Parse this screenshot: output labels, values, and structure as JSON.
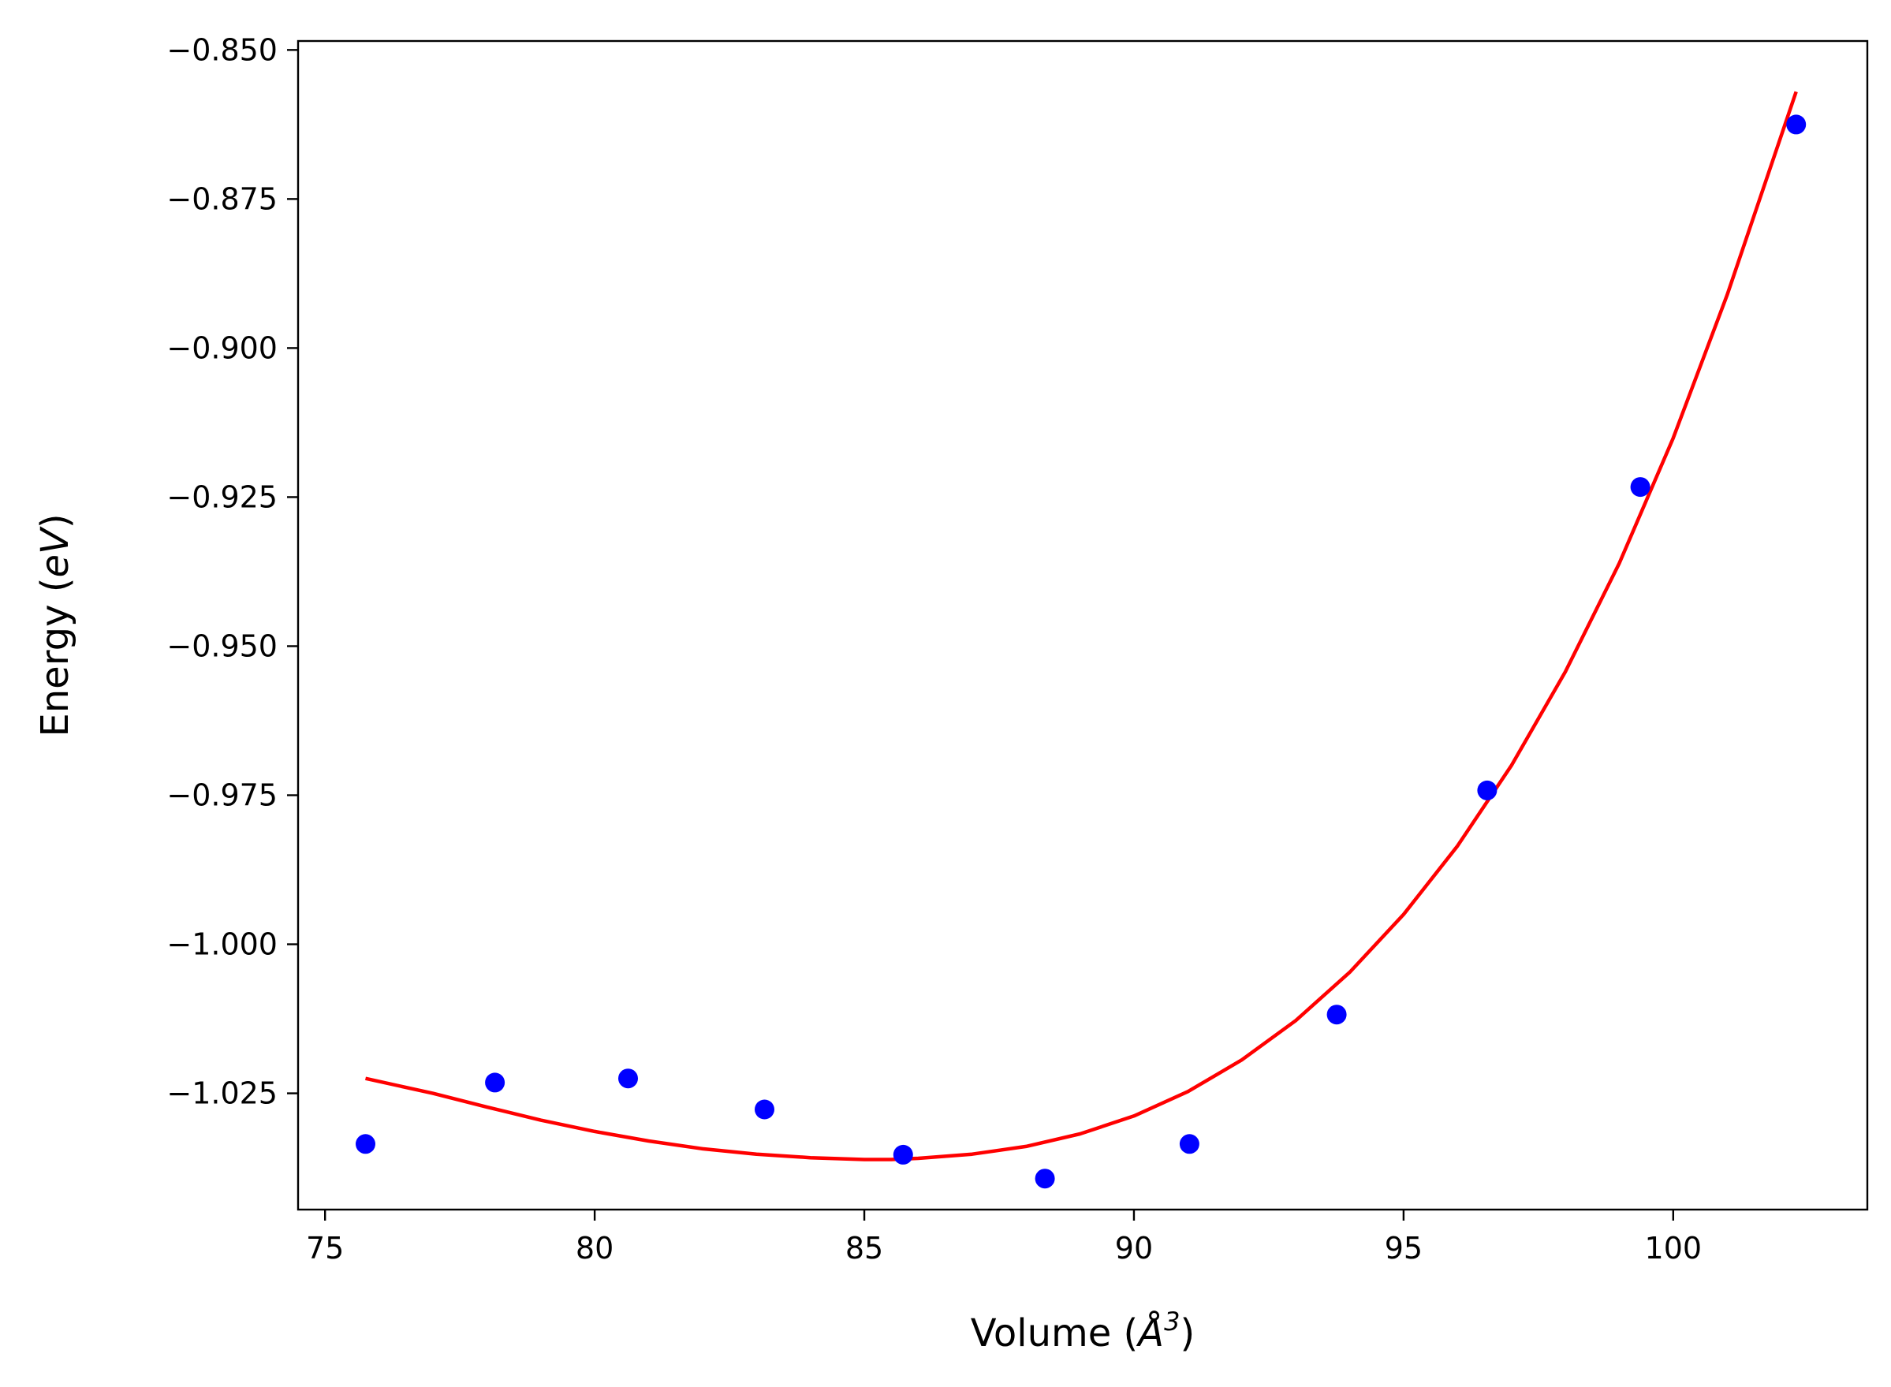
{
  "chart_data": {
    "type": "scatter",
    "xlabel": "Volume (Å³)",
    "ylabel": "Energy (eV)",
    "xlabel_parts": {
      "prefix": "Volume (",
      "symbol": "Å",
      "sup": "3",
      "suffix": ")"
    },
    "ylabel_parts": {
      "prefix": "Energy (",
      "unit": "eV",
      "suffix": ")"
    },
    "xlim": [
      74.5,
      103.6
    ],
    "ylim": [
      -1.0445,
      -0.8485
    ],
    "x_ticks": [
      75,
      80,
      85,
      90,
      95,
      100
    ],
    "x_tick_labels": [
      "75",
      "80",
      "85",
      "90",
      "95",
      "100"
    ],
    "y_ticks": [
      -0.85,
      -0.875,
      -0.9,
      -0.925,
      -0.95,
      -0.975,
      -1.0,
      -1.025
    ],
    "y_tick_labels": [
      "−0.850",
      "−0.875",
      "−0.900",
      "−0.925",
      "−0.950",
      "−0.975",
      "−1.000",
      "−1.025"
    ],
    "grid": false,
    "series": [
      {
        "kind": "scatter",
        "color": "#0000ff",
        "x": [
          75.75,
          78.15,
          80.62,
          83.15,
          85.72,
          88.35,
          91.03,
          93.76,
          96.55,
          99.39,
          102.28
        ],
        "y": [
          -1.0335,
          -1.0232,
          -1.0225,
          -1.0277,
          -1.0353,
          -1.0393,
          -1.0335,
          -1.0118,
          -0.9742,
          -0.9233,
          -0.8625
        ]
      },
      {
        "kind": "fit-line",
        "color": "#ff0000",
        "x": [
          75.75,
          77.0,
          78.0,
          79.0,
          80.0,
          81.0,
          82.0,
          83.0,
          84.0,
          85.0,
          85.5,
          86.0,
          87.0,
          88.0,
          89.0,
          90.0,
          91.0,
          92.0,
          93.0,
          94.0,
          95.0,
          96.0,
          97.0,
          98.0,
          99.0,
          100.0,
          101.0,
          102.28
        ],
        "y": [
          -1.0225,
          -1.025,
          -1.0273,
          -1.0295,
          -1.0314,
          -1.033,
          -1.0343,
          -1.0352,
          -1.0358,
          -1.0361,
          -1.0361,
          -1.0359,
          -1.0352,
          -1.0339,
          -1.0318,
          -1.0288,
          -1.0247,
          -1.0194,
          -1.0128,
          -1.0047,
          -0.995,
          -0.9835,
          -0.97,
          -0.9543,
          -0.9361,
          -0.9151,
          -0.8911,
          -0.857
        ]
      }
    ]
  }
}
